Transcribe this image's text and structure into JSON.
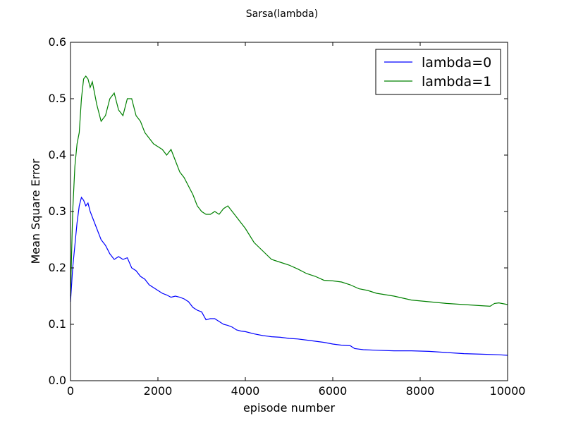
{
  "chart_data": {
    "type": "line",
    "title": "Sarsa(lambda)",
    "xlabel": "episode number",
    "ylabel": "Mean Square Error",
    "xlim": [
      0,
      10000
    ],
    "ylim": [
      0,
      0.6
    ],
    "xticks": [
      0,
      2000,
      4000,
      6000,
      8000,
      10000
    ],
    "xtick_labels": [
      "0",
      "2000",
      "4000",
      "6000",
      "8000",
      "10000"
    ],
    "yticks": [
      0,
      0.1,
      0.2,
      0.3,
      0.4,
      0.5,
      0.6
    ],
    "ytick_labels": [
      "0.0",
      "0.1",
      "0.2",
      "0.3",
      "0.4",
      "0.5",
      "0.6"
    ],
    "grid": false,
    "legend_position": "top-right",
    "series": [
      {
        "name": "lambda=0",
        "color": "#0000ff",
        "x": [
          0,
          50,
          100,
          150,
          200,
          250,
          300,
          350,
          400,
          450,
          500,
          600,
          700,
          800,
          900,
          1000,
          1100,
          1200,
          1300,
          1400,
          1500,
          1600,
          1700,
          1800,
          1900,
          2000,
          2100,
          2200,
          2300,
          2400,
          2500,
          2600,
          2700,
          2800,
          2900,
          3000,
          3100,
          3200,
          3300,
          3400,
          3500,
          3600,
          3700,
          3800,
          3900,
          4000,
          4200,
          4400,
          4600,
          4800,
          5000,
          5200,
          5400,
          5600,
          5800,
          6000,
          6200,
          6400,
          6500,
          6700,
          7000,
          7400,
          7800,
          8200,
          8600,
          9000,
          9400,
          9800,
          10000
        ],
        "y": [
          0.14,
          0.2,
          0.24,
          0.28,
          0.31,
          0.325,
          0.32,
          0.31,
          0.315,
          0.3,
          0.29,
          0.27,
          0.25,
          0.24,
          0.225,
          0.215,
          0.22,
          0.215,
          0.218,
          0.2,
          0.195,
          0.185,
          0.18,
          0.17,
          0.165,
          0.16,
          0.155,
          0.152,
          0.148,
          0.15,
          0.148,
          0.145,
          0.14,
          0.13,
          0.125,
          0.122,
          0.108,
          0.11,
          0.11,
          0.105,
          0.1,
          0.098,
          0.095,
          0.09,
          0.088,
          0.087,
          0.083,
          0.08,
          0.078,
          0.077,
          0.075,
          0.074,
          0.072,
          0.07,
          0.068,
          0.065,
          0.063,
          0.062,
          0.057,
          0.055,
          0.054,
          0.053,
          0.053,
          0.052,
          0.05,
          0.048,
          0.047,
          0.046,
          0.045
        ]
      },
      {
        "name": "lambda=1",
        "color": "#008000",
        "x": [
          0,
          50,
          100,
          150,
          200,
          250,
          300,
          350,
          400,
          450,
          500,
          600,
          700,
          800,
          900,
          1000,
          1100,
          1200,
          1300,
          1400,
          1500,
          1600,
          1700,
          1800,
          1900,
          2000,
          2100,
          2200,
          2300,
          2400,
          2500,
          2600,
          2700,
          2800,
          2900,
          3000,
          3100,
          3200,
          3300,
          3400,
          3500,
          3600,
          3700,
          3800,
          3900,
          4000,
          4200,
          4400,
          4600,
          4800,
          5000,
          5200,
          5400,
          5600,
          5800,
          6000,
          6200,
          6400,
          6600,
          6800,
          7000,
          7400,
          7800,
          8200,
          8600,
          9000,
          9400,
          9600,
          9700,
          9800,
          10000
        ],
        "y": [
          0.15,
          0.3,
          0.38,
          0.42,
          0.44,
          0.5,
          0.535,
          0.54,
          0.535,
          0.52,
          0.53,
          0.49,
          0.46,
          0.47,
          0.5,
          0.51,
          0.48,
          0.47,
          0.5,
          0.5,
          0.47,
          0.46,
          0.44,
          0.43,
          0.42,
          0.415,
          0.41,
          0.4,
          0.41,
          0.39,
          0.37,
          0.36,
          0.345,
          0.33,
          0.31,
          0.3,
          0.295,
          0.295,
          0.3,
          0.295,
          0.305,
          0.31,
          0.3,
          0.29,
          0.28,
          0.27,
          0.245,
          0.23,
          0.215,
          0.21,
          0.205,
          0.198,
          0.19,
          0.185,
          0.178,
          0.177,
          0.175,
          0.17,
          0.163,
          0.16,
          0.155,
          0.15,
          0.143,
          0.14,
          0.137,
          0.135,
          0.133,
          0.132,
          0.137,
          0.138,
          0.135
        ]
      }
    ]
  }
}
